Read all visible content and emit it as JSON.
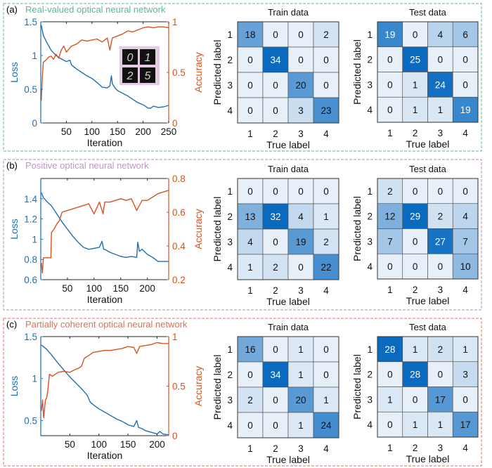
{
  "chart_data": [
    {
      "panel": "a",
      "panel_label": "(a)",
      "title": "Real-valued optical neural network",
      "title_color": "#5cb89a",
      "border_color": "#5cb89a",
      "line_chart": {
        "type": "line",
        "xlabel": "Iteration",
        "xlim": [
          0,
          250
        ],
        "xticks": [
          50,
          100,
          150,
          200,
          250
        ],
        "left_axis": {
          "label": "Loss",
          "color": "#1f6fb4",
          "ylim": [
            0,
            1.5
          ],
          "ticks": [
            0,
            0.5,
            1,
            1.5
          ],
          "tick_labels": [
            "0",
            "0.5",
            "1",
            "1.5"
          ]
        },
        "right_axis": {
          "label": "Accuracy",
          "color": "#d9531e",
          "ylim": [
            0,
            1
          ],
          "ticks": [
            0,
            0.5,
            1
          ],
          "tick_labels": [
            "0",
            "0.5",
            "1"
          ]
        },
        "series": [
          {
            "name": "Loss",
            "axis": "left",
            "color": "#1f6fb4",
            "x": [
              1,
              5,
              10,
              20,
              30,
              40,
              50,
              57,
              60,
              70,
              80,
              90,
              100,
              110,
              120,
              130,
              135,
              138,
              140,
              145,
              150,
              160,
              170,
              180,
              190,
              200,
              210,
              215,
              220,
              230,
              240,
              250
            ],
            "y": [
              1.45,
              1.3,
              1.22,
              1.08,
              1.0,
              0.95,
              0.91,
              0.93,
              0.86,
              0.8,
              0.75,
              0.7,
              0.66,
              0.6,
              0.53,
              0.52,
              0.55,
              0.7,
              0.58,
              0.52,
              0.48,
              0.44,
              0.4,
              0.35,
              0.3,
              0.27,
              0.22,
              0.22,
              0.25,
              0.23,
              0.24,
              0.26
            ]
          },
          {
            "name": "Accuracy",
            "axis": "right",
            "color": "#d9531e",
            "x": [
              1,
              3,
              5,
              10,
              15,
              20,
              25,
              30,
              35,
              40,
              45,
              50,
              60,
              70,
              80,
              90,
              100,
              110,
              120,
              130,
              135,
              140,
              150,
              160,
              170,
              180,
              190,
              200,
              210,
              220,
              230,
              240,
              250
            ],
            "y": [
              0.22,
              0.45,
              0.6,
              0.62,
              0.65,
              0.66,
              0.63,
              0.68,
              0.64,
              0.72,
              0.76,
              0.7,
              0.76,
              0.78,
              0.82,
              0.81,
              0.82,
              0.83,
              0.8,
              0.84,
              0.72,
              0.84,
              0.86,
              0.88,
              0.91,
              0.9,
              0.92,
              0.94,
              0.95,
              0.94,
              0.95,
              0.95,
              0.94
            ]
          }
        ],
        "inset": {
          "description": "MNIST digit samples",
          "digits": [
            "0",
            "1",
            "2",
            "5"
          ],
          "background": "#e2cbe3"
        }
      },
      "confusion_matrices": [
        {
          "title": "Train data",
          "xlabel": "True label",
          "ylabel": "Predicted label",
          "labels": [
            "1",
            "2",
            "3",
            "4"
          ],
          "values": [
            [
              18,
              0,
              0,
              2
            ],
            [
              0,
              34,
              0,
              0
            ],
            [
              0,
              0,
              20,
              0
            ],
            [
              0,
              0,
              3,
              23
            ]
          ]
        },
        {
          "title": "Test data",
          "xlabel": "True label",
          "ylabel": "Predicted label",
          "labels": [
            "1",
            "2",
            "3",
            "4"
          ],
          "values": [
            [
              19,
              0,
              4,
              6
            ],
            [
              0,
              25,
              0,
              0
            ],
            [
              0,
              1,
              24,
              0
            ],
            [
              0,
              1,
              1,
              19
            ]
          ]
        }
      ]
    },
    {
      "panel": "b",
      "panel_label": "(b)",
      "title": "Positive optical neural network",
      "title_color": "#c196c8",
      "border_color": "#b58bbd",
      "line_chart": {
        "type": "line",
        "xlabel": "Iteration",
        "xlim": [
          0,
          240
        ],
        "xticks": [
          50,
          100,
          150,
          200
        ],
        "left_axis": {
          "label": "Loss",
          "color": "#1f6fb4",
          "ylim": [
            0.6,
            1.6
          ],
          "ticks": [
            0.6,
            0.8,
            1,
            1.2,
            1.4
          ],
          "tick_labels": [
            "0.6",
            "0.8",
            "1",
            "1.2",
            "1.4"
          ]
        },
        "right_axis": {
          "label": "Accuracy",
          "color": "#d9531e",
          "ylim": [
            0.2,
            0.8
          ],
          "ticks": [
            0.2,
            0.4,
            0.6,
            0.8
          ],
          "tick_labels": [
            "0.2",
            "0.4",
            "0.6",
            "0.8"
          ]
        },
        "series": [
          {
            "name": "Loss",
            "axis": "left",
            "color": "#1f6fb4",
            "x": [
              1,
              5,
              10,
              20,
              30,
              40,
              50,
              60,
              70,
              80,
              90,
              100,
              110,
              115,
              118,
              120,
              130,
              140,
              150,
              160,
              170,
              180,
              182,
              185,
              190,
              200,
              210,
              220,
              230,
              240
            ],
            "y": [
              1.46,
              1.41,
              1.38,
              1.33,
              1.25,
              1.17,
              1.1,
              1.03,
              0.97,
              0.92,
              0.9,
              0.91,
              0.92,
              0.98,
              0.9,
              0.9,
              0.87,
              0.85,
              0.83,
              0.82,
              0.83,
              0.82,
              0.97,
              0.88,
              0.9,
              0.85,
              0.82,
              0.78,
              0.78,
              0.78
            ]
          },
          {
            "name": "Accuracy",
            "axis": "right",
            "color": "#d9531e",
            "x": [
              1,
              3,
              5,
              10,
              15,
              19,
              20,
              25,
              30,
              35,
              40,
              50,
              60,
              70,
              80,
              90,
              100,
              110,
              117,
              120,
              130,
              140,
              150,
              160,
              170,
              180,
              185,
              190,
              200,
              210,
              220,
              230,
              240
            ],
            "y": [
              0.3,
              0.24,
              0.33,
              0.33,
              0.33,
              0.33,
              0.48,
              0.5,
              0.53,
              0.55,
              0.6,
              0.61,
              0.62,
              0.63,
              0.64,
              0.65,
              0.59,
              0.66,
              0.59,
              0.66,
              0.66,
              0.67,
              0.68,
              0.67,
              0.68,
              0.61,
              0.64,
              0.67,
              0.67,
              0.69,
              0.71,
              0.72,
              0.73
            ]
          }
        ]
      },
      "confusion_matrices": [
        {
          "title": "Train data",
          "xlabel": "True label",
          "ylabel": "Predicted label",
          "labels": [
            "1",
            "2",
            "3",
            "4"
          ],
          "values": [
            [
              0,
              0,
              0,
              0
            ],
            [
              13,
              32,
              4,
              1
            ],
            [
              4,
              0,
              19,
              2
            ],
            [
              1,
              2,
              0,
              22
            ]
          ]
        },
        {
          "title": "Test data",
          "xlabel": "True label",
          "ylabel": "Predicted label",
          "labels": [
            "1",
            "2",
            "3",
            "4"
          ],
          "values": [
            [
              2,
              0,
              0,
              0
            ],
            [
              12,
              29,
              2,
              4
            ],
            [
              7,
              0,
              27,
              7
            ],
            [
              0,
              0,
              0,
              10
            ]
          ]
        }
      ]
    },
    {
      "panel": "c",
      "panel_label": "(c)",
      "title": "Partially coherent optical neural network",
      "title_color": "#e0705a",
      "border_color": "#e36c62",
      "line_chart": {
        "type": "line",
        "xlabel": "Iteration",
        "xlim": [
          0,
          220
        ],
        "xticks": [
          50,
          100,
          150,
          200
        ],
        "left_axis": {
          "label": "Loss",
          "color": "#1f6fb4",
          "ylim": [
            0.32,
            1.5
          ],
          "ticks": [
            0.5,
            1,
            1.5
          ],
          "tick_labels": [
            "0.5",
            "1",
            "1.5"
          ]
        },
        "right_axis": {
          "label": "Accuracy",
          "color": "#d9531e",
          "ylim": [
            0,
            1
          ],
          "ticks": [
            0,
            0.5,
            1
          ],
          "tick_labels": [
            "0",
            "0.5",
            "1"
          ]
        },
        "series": [
          {
            "name": "Loss",
            "axis": "left",
            "color": "#1f6fb4",
            "x": [
              1,
              10,
              20,
              30,
              40,
              50,
              60,
              70,
              80,
              85,
              90,
              100,
              110,
              120,
              130,
              140,
              145,
              150,
              160,
              165,
              168,
              175,
              180,
              190,
              200,
              205,
              210,
              220
            ],
            "y": [
              1.4,
              1.35,
              1.27,
              1.18,
              1.1,
              1.02,
              0.95,
              0.88,
              0.8,
              0.72,
              0.69,
              0.64,
              0.6,
              0.56,
              0.52,
              0.49,
              0.47,
              0.45,
              0.43,
              0.5,
              0.42,
              0.4,
              0.38,
              0.36,
              0.34,
              0.37,
              0.34,
              0.33
            ]
          },
          {
            "name": "Accuracy",
            "axis": "right",
            "color": "#d9531e",
            "x": [
              1,
              3,
              5,
              8,
              10,
              12,
              15,
              20,
              30,
              40,
              50,
              60,
              65,
              70,
              75,
              80,
              90,
              100,
              110,
              120,
              130,
              140,
              150,
              160,
              165,
              170,
              180,
              190,
              200,
              210,
              220
            ],
            "y": [
              0.25,
              0.36,
              0.18,
              0.36,
              0.38,
              0.45,
              0.62,
              0.6,
              0.64,
              0.65,
              0.64,
              0.67,
              0.68,
              0.7,
              0.78,
              0.8,
              0.84,
              0.85,
              0.86,
              0.86,
              0.87,
              0.88,
              0.9,
              0.89,
              0.83,
              0.9,
              0.91,
              0.92,
              0.94,
              0.93,
              0.93
            ]
          }
        ]
      },
      "confusion_matrices": [
        {
          "title": "Train data",
          "xlabel": "True label",
          "ylabel": "Predicted label",
          "labels": [
            "1",
            "2",
            "3",
            "4"
          ],
          "values": [
            [
              16,
              0,
              1,
              0
            ],
            [
              0,
              34,
              1,
              0
            ],
            [
              2,
              0,
              20,
              1
            ],
            [
              0,
              0,
              1,
              24
            ]
          ]
        },
        {
          "title": "Test data",
          "xlabel": "True label",
          "ylabel": "Predicted label",
          "labels": [
            "1",
            "2",
            "3",
            "4"
          ],
          "values": [
            [
              28,
              1,
              2,
              1
            ],
            [
              0,
              28,
              0,
              3
            ],
            [
              1,
              0,
              17,
              0
            ],
            [
              0,
              1,
              1,
              17
            ]
          ]
        }
      ]
    }
  ]
}
